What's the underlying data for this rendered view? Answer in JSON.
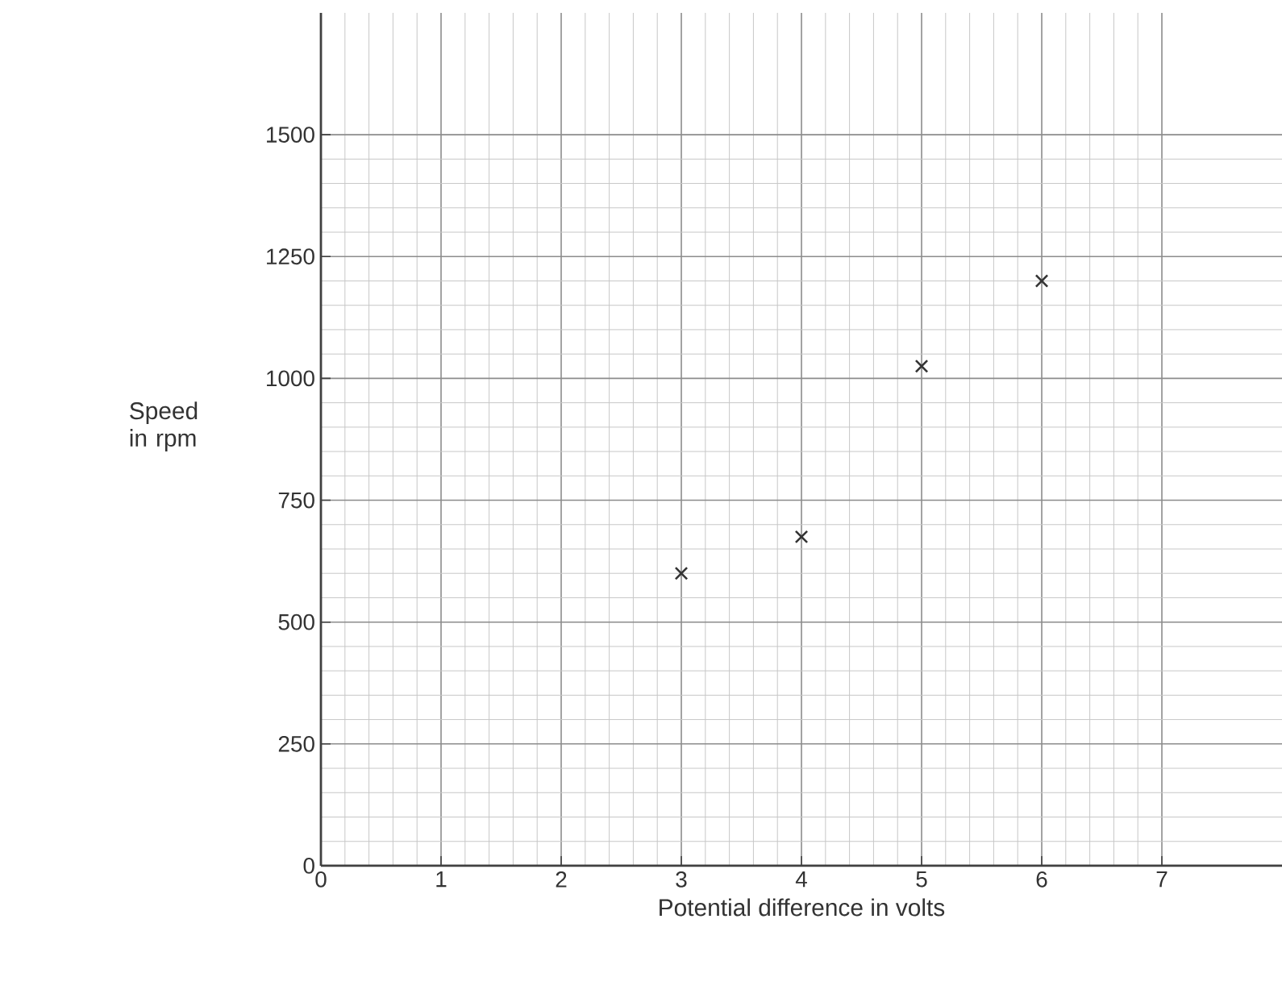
{
  "chart_data": {
    "type": "scatter",
    "xlabel": "Potential difference in volts",
    "ylabel": "Speed in rpm",
    "x": [
      3,
      4,
      5,
      6
    ],
    "values": [
      600,
      675,
      1025,
      1200
    ],
    "color": "#333333",
    "marker": "cross",
    "grid": true,
    "xlim": [
      0,
      8
    ],
    "ylim": [
      0,
      1750
    ],
    "xticks": [
      0,
      1,
      2,
      3,
      4,
      5,
      6,
      7
    ],
    "yticks": [
      0,
      250,
      500,
      750,
      1000,
      1250,
      1500
    ]
  }
}
